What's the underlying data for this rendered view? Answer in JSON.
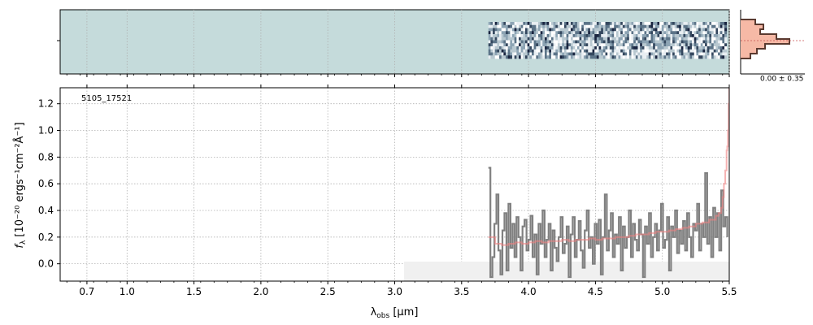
{
  "chart_data": {
    "type": "line",
    "label": "5105_17521",
    "xlabel_main": "λ",
    "xlabel_sub": "obs",
    "xlabel_unit": " [μm]",
    "ylabel_main": "f",
    "ylabel_sub": "λ",
    "ylabel_unit": " [10⁻²⁰ ergs⁻¹cm⁻²Å⁻¹]",
    "x_ticks": [
      "0.7",
      "1.0",
      "1.5",
      "2.0",
      "2.5",
      "3.0",
      "3.5",
      "4.0",
      "4.5",
      "5.0",
      "5.5"
    ],
    "x_tick_values": [
      0.7,
      1.0,
      1.5,
      2.0,
      2.5,
      3.0,
      3.5,
      4.0,
      4.5,
      5.0,
      5.5
    ],
    "y_ticks": [
      "0.0",
      "0.2",
      "0.4",
      "0.6",
      "0.8",
      "1.0",
      "1.2"
    ],
    "y_tick_values": [
      0.0,
      0.2,
      0.4,
      0.6,
      0.8,
      1.0,
      1.2
    ],
    "ylim": [
      -0.13,
      1.32
    ],
    "xlim": [
      0.5,
      5.5
    ],
    "grid": true,
    "hist_label": "0.00 ± 0.35",
    "colors": {
      "data": "#808080",
      "model": "#f08080",
      "model_dark": "#c85050",
      "image_bg": "#c5dbdb",
      "hist_fill": "#f6b9a6",
      "hist_line": "#5a3a30",
      "grid": "#b0b0b0"
    },
    "series": [
      {
        "name": "data",
        "x": [
          3.7,
          3.715,
          3.73,
          3.745,
          3.76,
          3.775,
          3.79,
          3.805,
          3.82,
          3.835,
          3.85,
          3.865,
          3.88,
          3.895,
          3.91,
          3.925,
          3.94,
          3.955,
          3.97,
          3.985,
          4.0,
          4.015,
          4.03,
          4.045,
          4.06,
          4.075,
          4.09,
          4.105,
          4.12,
          4.135,
          4.15,
          4.165,
          4.18,
          4.195,
          4.21,
          4.225,
          4.24,
          4.255,
          4.27,
          4.285,
          4.3,
          4.315,
          4.33,
          4.345,
          4.36,
          4.375,
          4.39,
          4.405,
          4.42,
          4.435,
          4.45,
          4.465,
          4.48,
          4.495,
          4.51,
          4.525,
          4.54,
          4.555,
          4.57,
          4.585,
          4.6,
          4.615,
          4.63,
          4.645,
          4.66,
          4.675,
          4.69,
          4.705,
          4.72,
          4.735,
          4.75,
          4.765,
          4.78,
          4.795,
          4.81,
          4.825,
          4.84,
          4.855,
          4.87,
          4.885,
          4.9,
          4.915,
          4.93,
          4.945,
          4.96,
          4.975,
          4.99,
          5.005,
          5.02,
          5.035,
          5.05,
          5.065,
          5.08,
          5.095,
          5.11,
          5.125,
          5.14,
          5.155,
          5.17,
          5.185,
          5.2,
          5.215,
          5.23,
          5.245,
          5.26,
          5.275,
          5.29,
          5.305,
          5.32,
          5.335,
          5.35,
          5.365,
          5.38,
          5.395,
          5.41,
          5.425,
          5.44,
          5.455,
          5.47,
          5.485
        ],
        "values": [
          0.72,
          -0.1,
          0.05,
          0.3,
          0.52,
          0.1,
          -0.08,
          0.25,
          0.38,
          -0.05,
          0.45,
          0.12,
          0.3,
          0.05,
          0.35,
          0.2,
          -0.05,
          0.28,
          0.33,
          0.1,
          0.18,
          0.36,
          0.05,
          0.22,
          -0.08,
          0.3,
          0.15,
          0.4,
          0.05,
          0.18,
          0.3,
          -0.05,
          0.25,
          0.12,
          0.02,
          0.2,
          0.35,
          0.08,
          0.15,
          0.28,
          -0.1,
          0.22,
          0.35,
          0.05,
          0.18,
          0.32,
          0.1,
          -0.03,
          0.25,
          0.4,
          0.12,
          0.2,
          0.0,
          0.3,
          0.15,
          0.33,
          -0.08,
          0.2,
          0.52,
          0.1,
          0.25,
          0.38,
          0.05,
          0.22,
          0.15,
          0.35,
          -0.05,
          0.28,
          0.12,
          0.2,
          0.4,
          0.05,
          0.3,
          0.18,
          0.1,
          0.33,
          0.22,
          -0.1,
          0.28,
          0.15,
          0.38,
          0.05,
          0.2,
          0.3,
          0.1,
          0.25,
          0.45,
          0.12,
          0.18,
          0.35,
          -0.05,
          0.28,
          0.2,
          0.4,
          0.08,
          0.25,
          0.15,
          0.32,
          0.1,
          0.38,
          0.2,
          0.05,
          0.3,
          0.25,
          0.45,
          0.1,
          0.3,
          0.2,
          0.68,
          0.15,
          0.35,
          0.05,
          0.42,
          0.2,
          0.38,
          0.1,
          0.55,
          0.28,
          0.35,
          0.2
        ]
      },
      {
        "name": "model",
        "x": [
          3.7,
          3.75,
          3.8,
          3.85,
          3.9,
          3.95,
          4.0,
          4.05,
          4.1,
          4.15,
          4.2,
          4.25,
          4.3,
          4.35,
          4.4,
          4.45,
          4.5,
          4.55,
          4.6,
          4.65,
          4.7,
          4.75,
          4.8,
          4.85,
          4.9,
          4.95,
          5.0,
          5.05,
          5.1,
          5.15,
          5.2,
          5.25,
          5.3,
          5.35,
          5.4,
          5.42,
          5.44,
          5.45,
          5.46,
          5.47,
          5.48,
          5.485,
          5.49,
          5.495,
          5.5
        ],
        "values": [
          0.2,
          0.15,
          0.14,
          0.15,
          0.16,
          0.15,
          0.16,
          0.17,
          0.16,
          0.17,
          0.17,
          0.18,
          0.17,
          0.18,
          0.18,
          0.19,
          0.18,
          0.19,
          0.19,
          0.2,
          0.2,
          0.21,
          0.22,
          0.22,
          0.23,
          0.24,
          0.24,
          0.25,
          0.26,
          0.27,
          0.28,
          0.3,
          0.31,
          0.33,
          0.36,
          0.38,
          0.42,
          0.5,
          0.6,
          0.7,
          0.85,
          0.88,
          1.0,
          1.2,
          1.32
        ]
      }
    ]
  }
}
